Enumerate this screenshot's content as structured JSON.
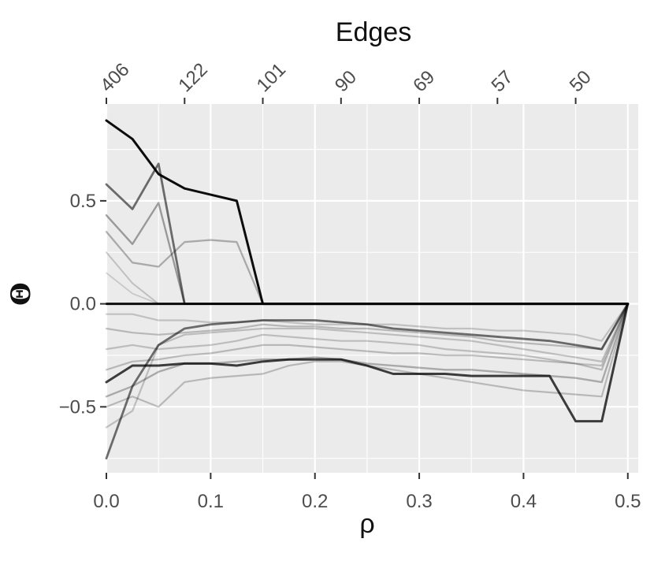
{
  "chart_data": {
    "type": "line",
    "title": "",
    "top_axis_title": "Edges",
    "top_ticks": [
      {
        "x": 0.0,
        "label": "406"
      },
      {
        "x": 0.075,
        "label": "122"
      },
      {
        "x": 0.15,
        "label": "101"
      },
      {
        "x": 0.225,
        "label": "90"
      },
      {
        "x": 0.3,
        "label": "69"
      },
      {
        "x": 0.375,
        "label": "57"
      },
      {
        "x": 0.45,
        "label": "50"
      }
    ],
    "xlabel": "ρ",
    "ylabel": "Θ",
    "xlim": [
      0.0,
      0.51
    ],
    "ylim": [
      -0.82,
      0.97
    ],
    "x_ticks": [
      0.0,
      0.1,
      0.2,
      0.3,
      0.4,
      0.5
    ],
    "x_tick_labels": [
      "0.0",
      "0.1",
      "0.2",
      "0.3",
      "0.4",
      "0.5"
    ],
    "y_ticks": [
      0.5,
      0.0,
      -0.5
    ],
    "y_tick_labels": [
      "0.5",
      "0.0",
      "−0.5"
    ],
    "grid": true,
    "background": "#ebebeb",
    "grid_color": "#ffffff",
    "series_color": "#000000",
    "x": [
      0.0,
      0.025,
      0.05,
      0.075,
      0.1,
      0.125,
      0.15,
      0.175,
      0.2,
      0.225,
      0.25,
      0.275,
      0.3,
      0.325,
      0.35,
      0.375,
      0.4,
      0.425,
      0.45,
      0.475,
      0.5
    ],
    "series": [
      {
        "values": [
          0.89,
          0.8,
          0.63,
          0.56,
          0.53,
          0.5,
          0.0,
          0.0,
          0.0,
          0.0,
          0.0,
          0.0,
          0.0,
          0.0,
          0.0,
          0.0,
          0.0,
          0.0,
          0.0,
          0.0,
          0.0
        ]
      },
      {
        "values": [
          0.58,
          0.46,
          0.68,
          0.0,
          0.0,
          0.0,
          0.0,
          0.0,
          0.0,
          0.0,
          0.0,
          0.0,
          0.0,
          0.0,
          0.0,
          0.0,
          0.0,
          0.0,
          0.0,
          0.0,
          0.0
        ]
      },
      {
        "values": [
          0.43,
          0.29,
          0.49,
          0.0,
          0.0,
          0.0,
          0.0,
          0.0,
          0.0,
          0.0,
          0.0,
          0.0,
          0.0,
          0.0,
          0.0,
          0.0,
          0.0,
          0.0,
          0.0,
          0.0,
          0.0
        ]
      },
      {
        "values": [
          0.35,
          0.2,
          0.18,
          0.3,
          0.31,
          0.3,
          0.0,
          0.0,
          0.0,
          0.0,
          0.0,
          0.0,
          0.0,
          0.0,
          0.0,
          0.0,
          0.0,
          0.0,
          0.0,
          0.0,
          0.0
        ]
      },
      {
        "values": [
          0.25,
          0.1,
          0.0,
          0.0,
          0.0,
          0.0,
          0.0,
          0.0,
          0.0,
          0.0,
          0.0,
          0.0,
          0.0,
          0.0,
          0.0,
          0.0,
          0.0,
          0.0,
          0.0,
          0.0,
          0.0
        ]
      },
      {
        "values": [
          0.15,
          0.05,
          0.0,
          0.0,
          0.0,
          0.0,
          0.0,
          0.0,
          0.0,
          0.0,
          0.0,
          0.0,
          0.0,
          0.0,
          0.0,
          0.0,
          0.0,
          0.0,
          0.0,
          0.0,
          0.0
        ]
      },
      {
        "values": [
          0.0,
          0.0,
          0.0,
          0.0,
          0.0,
          0.0,
          0.0,
          0.0,
          0.0,
          0.0,
          0.0,
          0.0,
          0.0,
          0.0,
          0.0,
          0.0,
          0.0,
          0.0,
          0.0,
          0.0,
          0.0
        ]
      },
      {
        "values": [
          -0.05,
          -0.05,
          -0.08,
          -0.08,
          -0.09,
          -0.09,
          -0.08,
          -0.09,
          -0.1,
          -0.1,
          -0.1,
          -0.1,
          -0.11,
          -0.12,
          -0.12,
          -0.13,
          -0.13,
          -0.14,
          -0.15,
          -0.18,
          0.0
        ]
      },
      {
        "values": [
          -0.12,
          -0.14,
          -0.15,
          -0.14,
          -0.13,
          -0.12,
          -0.1,
          -0.11,
          -0.11,
          -0.12,
          -0.12,
          -0.13,
          -0.14,
          -0.15,
          -0.16,
          -0.18,
          -0.19,
          -0.2,
          -0.21,
          -0.22,
          0.0
        ]
      },
      {
        "values": [
          -0.22,
          -0.2,
          -0.22,
          -0.21,
          -0.2,
          -0.18,
          -0.15,
          -0.16,
          -0.17,
          -0.18,
          -0.18,
          -0.19,
          -0.2,
          -0.22,
          -0.23,
          -0.24,
          -0.25,
          -0.27,
          -0.29,
          -0.3,
          0.0
        ]
      },
      {
        "values": [
          -0.32,
          -0.28,
          -0.27,
          -0.25,
          -0.24,
          -0.22,
          -0.2,
          -0.2,
          -0.21,
          -0.22,
          -0.23,
          -0.24,
          -0.24,
          -0.25,
          -0.25,
          -0.26,
          -0.27,
          -0.28,
          -0.29,
          -0.32,
          0.0
        ]
      },
      {
        "values": [
          -0.45,
          -0.4,
          -0.33,
          -0.29,
          -0.29,
          -0.28,
          -0.27,
          -0.27,
          -0.26,
          -0.27,
          -0.29,
          -0.3,
          -0.31,
          -0.32,
          -0.32,
          -0.33,
          -0.34,
          -0.35,
          -0.36,
          -0.38,
          0.0
        ]
      },
      {
        "values": [
          -0.38,
          -0.3,
          -0.3,
          -0.29,
          -0.29,
          -0.3,
          -0.28,
          -0.27,
          -0.27,
          -0.27,
          -0.3,
          -0.34,
          -0.34,
          -0.34,
          -0.35,
          -0.35,
          -0.35,
          -0.35,
          -0.57,
          -0.57,
          0.0
        ]
      },
      {
        "values": [
          -0.5,
          -0.45,
          -0.5,
          -0.38,
          -0.36,
          -0.35,
          -0.34,
          -0.3,
          -0.28,
          -0.28,
          -0.3,
          -0.32,
          -0.34,
          -0.36,
          -0.38,
          -0.4,
          -0.42,
          -0.43,
          -0.44,
          -0.45,
          0.0
        ]
      },
      {
        "values": [
          -0.6,
          -0.52,
          -0.2,
          -0.15,
          -0.14,
          -0.13,
          -0.12,
          -0.12,
          -0.12,
          -0.13,
          -0.14,
          -0.15,
          -0.16,
          -0.17,
          -0.18,
          -0.2,
          -0.22,
          -0.24,
          -0.26,
          -0.28,
          0.0
        ]
      },
      {
        "values": [
          -0.75,
          -0.4,
          -0.2,
          -0.12,
          -0.1,
          -0.09,
          -0.08,
          -0.08,
          -0.08,
          -0.09,
          -0.1,
          -0.12,
          -0.13,
          -0.14,
          -0.15,
          -0.16,
          -0.17,
          -0.18,
          -0.2,
          -0.22,
          0.0
        ]
      }
    ]
  }
}
